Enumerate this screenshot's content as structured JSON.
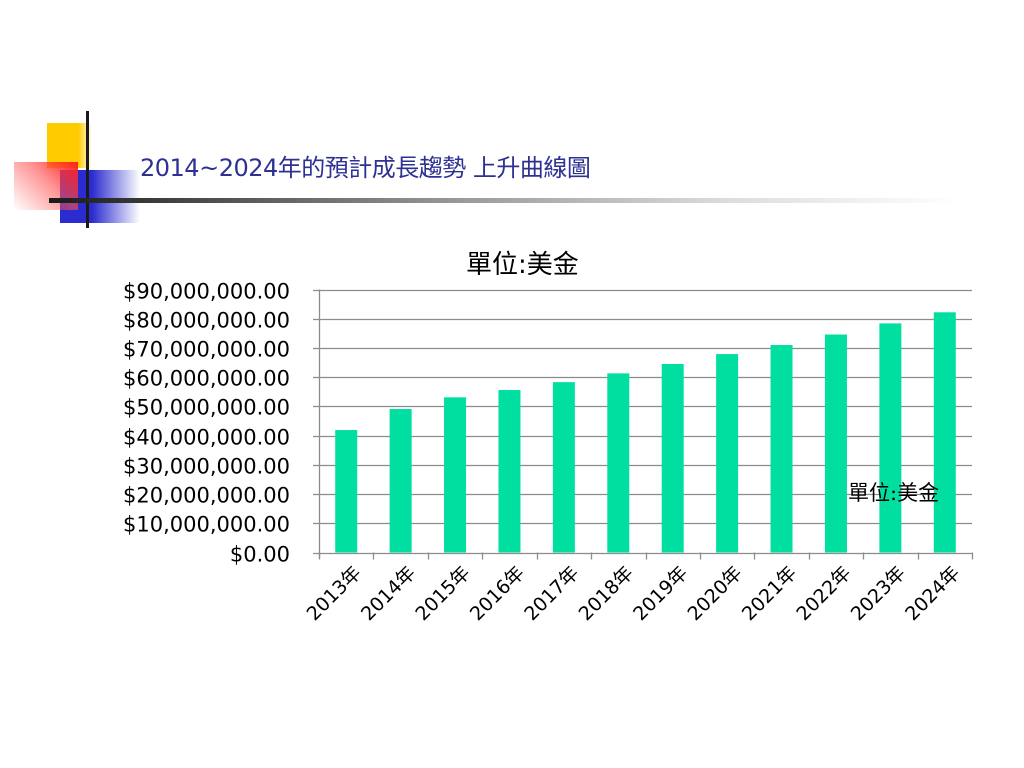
{
  "slide": {
    "title": "2014~2024年的預計成長趨勢  上升曲線圖"
  },
  "colors": {
    "bar": "#00dfa0",
    "title": "#2e3192",
    "grid": "#8c8c8c"
  },
  "chart_data": {
    "type": "bar",
    "title": "單位:美金",
    "xlabel": "",
    "ylabel": "",
    "categories": [
      "2013年",
      "2014年",
      "2015年",
      "2016年",
      "2017年",
      "2018年",
      "2019年",
      "2020年",
      "2021年",
      "2022年",
      "2023年",
      "2024年"
    ],
    "series": [
      {
        "name": "單位:美金",
        "values": [
          41900000,
          49100000,
          53100000,
          55600000,
          58300000,
          61300000,
          64500000,
          67900000,
          71000000,
          74600000,
          78400000,
          82200000
        ]
      }
    ],
    "ylim": [
      0,
      90000000
    ],
    "yticks": [
      0,
      10000000,
      20000000,
      30000000,
      40000000,
      50000000,
      60000000,
      70000000,
      80000000,
      90000000
    ],
    "ytick_labels": [
      "$0.00",
      "$10,000,000.00",
      "$20,000,000.00",
      "$30,000,000.00",
      "$40,000,000.00",
      "$50,000,000.00",
      "$60,000,000.00",
      "$70,000,000.00",
      "$80,000,000.00",
      "$90,000,000.00"
    ],
    "grid": true,
    "legend": {
      "entries": [
        "單位:美金"
      ],
      "placement": "right"
    }
  }
}
